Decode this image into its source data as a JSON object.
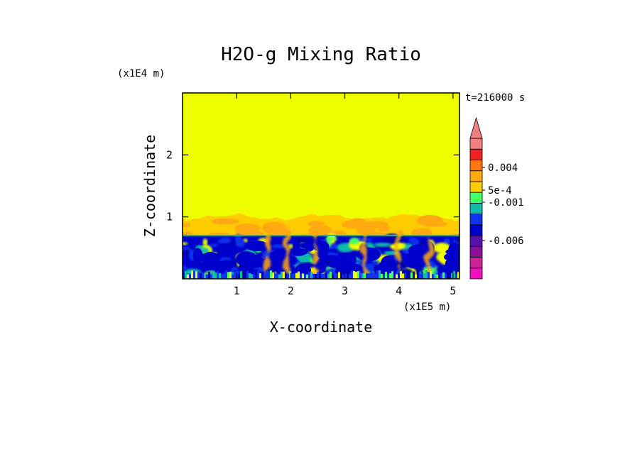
{
  "chart_data": {
    "type": "heatmap",
    "title": "H2O-g Mixing Ratio",
    "xlabel": "X-coordinate",
    "ylabel": "Z-coordinate",
    "x_scale_label": "(x1E5 m)",
    "y_scale_label": "(x1E4 m)",
    "time_label": "t=216000 s",
    "xlim": [
      0,
      5.12
    ],
    "ylim": [
      0,
      3.0
    ],
    "x_ticks": [
      1,
      2,
      3,
      4,
      5
    ],
    "y_ticks": [
      1,
      2
    ],
    "x_tick_labels": [
      "1",
      "2",
      "3",
      "4",
      "5"
    ],
    "y_tick_labels": [
      "1",
      "2"
    ],
    "background_value_color": "#f0ff00",
    "colorbar": {
      "colors": [
        "#ee11bb",
        "#cc2299",
        "#881199",
        "#5511aa",
        "#0000cc",
        "#1133ee",
        "#11bbaa",
        "#44ff66",
        "#ffcc00",
        "#ffaa11",
        "#ff7711",
        "#ee2222",
        "#f08080"
      ],
      "labels": [
        {
          "text": "0.004",
          "value": 0.004
        },
        {
          "text": "5e-4",
          "value": 0.0005
        },
        {
          "text": "-0.001",
          "value": -0.001
        },
        {
          "text": "-0.006",
          "value": -0.006
        }
      ]
    }
  }
}
